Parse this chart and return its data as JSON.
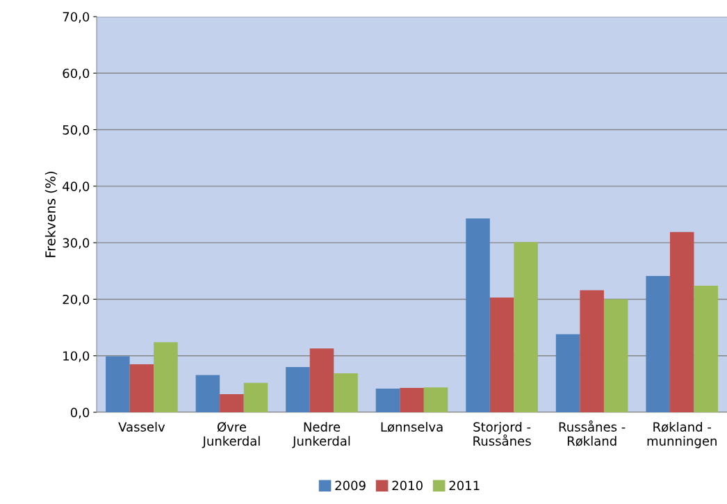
{
  "chart_data": {
    "type": "bar",
    "ylabel": "Frekvens (%)",
    "categories": [
      "Vasselv",
      "Øvre\nJunkerdal",
      "Nedre\nJunkerdal",
      "Lønnselva",
      "Storjord -\nRussånes",
      "Russånes -\nRøkland",
      "Røkland -\nmunningen"
    ],
    "series": [
      {
        "name": "2009",
        "color": "#4f81bd",
        "values": [
          9.9,
          6.6,
          8.0,
          4.2,
          34.3,
          13.8,
          24.1
        ]
      },
      {
        "name": "2010",
        "color": "#c0504d",
        "values": [
          8.5,
          3.2,
          11.3,
          4.3,
          20.3,
          21.6,
          31.9
        ]
      },
      {
        "name": "2011",
        "color": "#9bbb59",
        "values": [
          12.4,
          5.2,
          6.9,
          4.4,
          30.1,
          20.0,
          22.4
        ]
      }
    ],
    "ylim": [
      0,
      70
    ],
    "yticks": [
      {
        "value": 0,
        "label": "0,0"
      },
      {
        "value": 10,
        "label": "10,0"
      },
      {
        "value": 20,
        "label": "20,0"
      },
      {
        "value": 30,
        "label": "30,0"
      },
      {
        "value": 40,
        "label": "40,0"
      },
      {
        "value": 50,
        "label": "50,0"
      },
      {
        "value": 60,
        "label": "60,0"
      },
      {
        "value": 70,
        "label": "70,0"
      }
    ],
    "grid": "y",
    "legend": "bottom"
  }
}
